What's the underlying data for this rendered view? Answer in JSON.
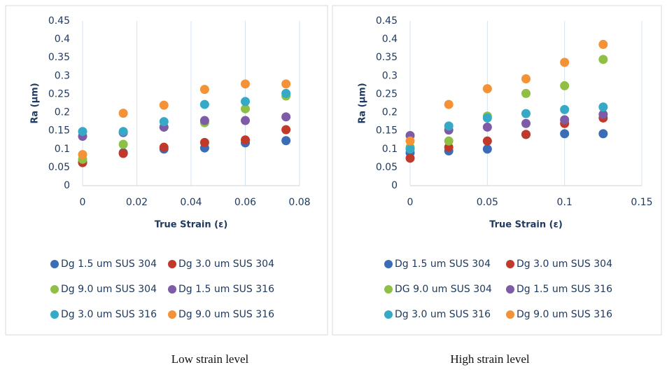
{
  "chart_data": [
    {
      "type": "scatter",
      "x_label": "True Strain (ε)",
      "y_label": "Ra (µm)",
      "caption": "Low strain level",
      "x": [
        0,
        0.015,
        0.03,
        0.045,
        0.06,
        0.075
      ],
      "xlim": [
        0,
        0.08
      ],
      "xticks": [
        0,
        0.02,
        0.04,
        0.06,
        0.08
      ],
      "ylim": [
        0,
        0.45
      ],
      "yticks": [
        0,
        0.05,
        0.1,
        0.15,
        0.2,
        0.25,
        0.3,
        0.35,
        0.4,
        0.45
      ],
      "grid": true,
      "series": [
        {
          "name": "Dg 1.5 um SUS 304",
          "color": "#3a6db5",
          "values": [
            0.065,
            0.09,
            0.1,
            0.103,
            0.117,
            0.123
          ]
        },
        {
          "name": "Dg 3.0 um SUS 304",
          "color": "#c0392b",
          "values": [
            0.063,
            0.088,
            0.105,
            0.118,
            0.125,
            0.153
          ]
        },
        {
          "name": "Dg 9.0 um SUS 304",
          "color": "#8fbf45",
          "values": [
            0.072,
            0.113,
            0.16,
            0.172,
            0.21,
            0.245
          ]
        },
        {
          "name": "Dg 1.5 um SUS 316",
          "color": "#7d5ba6",
          "values": [
            0.135,
            0.145,
            0.16,
            0.178,
            0.178,
            0.188
          ]
        },
        {
          "name": "Dg 3.0 um SUS 316",
          "color": "#35a9c6",
          "values": [
            0.148,
            0.148,
            0.175,
            0.222,
            0.23,
            0.252
          ]
        },
        {
          "name": "Dg 9.0 um SUS 316",
          "color": "#f39237",
          "values": [
            0.085,
            0.198,
            0.22,
            0.263,
            0.278,
            0.278
          ]
        }
      ]
    },
    {
      "type": "scatter",
      "x_label": "True Strain (ε)",
      "y_label": "Ra (µm)",
      "caption": "High strain level",
      "x": [
        0,
        0.025,
        0.05,
        0.075,
        0.1,
        0.125
      ],
      "xlim": [
        0,
        0.15
      ],
      "xticks": [
        0,
        0.05,
        0.1,
        0.15
      ],
      "ylim": [
        0,
        0.45
      ],
      "yticks": [
        0,
        0.05,
        0.1,
        0.15,
        0.2,
        0.25,
        0.3,
        0.35,
        0.4,
        0.45
      ],
      "grid": true,
      "series": [
        {
          "name": "Dg 1.5 um SUS 304",
          "color": "#3a6db5",
          "values": [
            0.09,
            0.095,
            0.1,
            0.14,
            0.142,
            0.142
          ]
        },
        {
          "name": "Dg 3.0 um SUS 304",
          "color": "#c0392b",
          "values": [
            0.075,
            0.105,
            0.122,
            0.14,
            0.17,
            0.185
          ]
        },
        {
          "name": "DG 9.0 um SUS 304",
          "color": "#8fbf45",
          "values": [
            0.105,
            0.122,
            0.19,
            0.252,
            0.273,
            0.345
          ]
        },
        {
          "name": "Dg 1.5 um SUS 316",
          "color": "#7d5ba6",
          "values": [
            0.137,
            0.152,
            0.16,
            0.17,
            0.18,
            0.195
          ]
        },
        {
          "name": "Dg 3.0 um SUS 316",
          "color": "#35a9c6",
          "values": [
            0.1,
            0.163,
            0.185,
            0.197,
            0.208,
            0.215
          ]
        },
        {
          "name": "Dg 9.0 um SUS 316",
          "color": "#f39237",
          "values": [
            0.122,
            0.222,
            0.265,
            0.292,
            0.337,
            0.386
          ]
        }
      ]
    }
  ]
}
